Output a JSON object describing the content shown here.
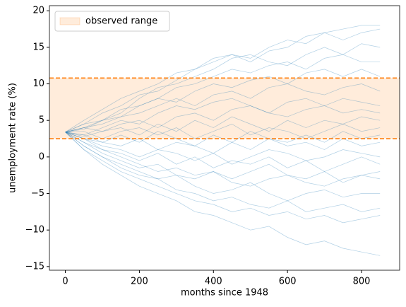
{
  "chart_data": {
    "type": "line",
    "xlabel": "months since 1948",
    "ylabel": "unemployment rate (%)",
    "x": [
      0,
      50,
      100,
      150,
      200,
      250,
      300,
      350,
      400,
      450,
      500,
      550,
      600,
      650,
      700,
      750,
      800,
      850
    ],
    "color": "#1f77b4",
    "series": [
      {
        "values": [
          3.4,
          5,
          6.5,
          8,
          9,
          10,
          11.5,
          12,
          13,
          14,
          13.5,
          15,
          16,
          15.5,
          17,
          17.5,
          18,
          18
        ]
      },
      {
        "values": [
          3.4,
          4.5,
          6,
          7,
          8.5,
          9,
          10.5,
          12,
          13.5,
          14,
          13,
          14.5,
          15,
          16.5,
          17,
          16,
          17,
          17.5
        ]
      },
      {
        "values": [
          3.4,
          4,
          5,
          6,
          8,
          9.5,
          10,
          11,
          12,
          13.5,
          14,
          13,
          12.5,
          14,
          15,
          14,
          15.5,
          15
        ]
      },
      {
        "values": [
          3.4,
          4.5,
          5,
          6.5,
          7,
          8,
          9.5,
          10,
          11,
          12,
          11.5,
          12.5,
          13,
          12,
          13.5,
          14,
          13,
          13
        ]
      },
      {
        "values": [
          3.4,
          3.8,
          5,
          5.5,
          7,
          8,
          7.5,
          9,
          10,
          9.5,
          10.5,
          11,
          10,
          11.5,
          12,
          11,
          12,
          11
        ]
      },
      {
        "values": [
          3.4,
          4,
          4.5,
          5.5,
          6,
          7,
          8,
          7,
          8.5,
          9,
          8,
          9.5,
          10,
          9,
          8.5,
          9.5,
          10,
          9
        ]
      },
      {
        "values": [
          3.4,
          3,
          4,
          5,
          4.5,
          6,
          7,
          6.5,
          7.5,
          8,
          7,
          6,
          7.5,
          8,
          7,
          8,
          7.5,
          7
        ]
      },
      {
        "values": [
          3.4,
          4,
          3.5,
          4.5,
          5,
          4,
          5.5,
          6,
          5,
          6.5,
          7,
          6,
          5.5,
          6.5,
          7,
          6,
          6.5,
          6
        ]
      },
      {
        "values": [
          3.4,
          2.8,
          3.5,
          4,
          3,
          4.5,
          3.5,
          5,
          4,
          5.5,
          4.5,
          3.5,
          5,
          4,
          5,
          4.5,
          5.5,
          5
        ]
      },
      {
        "values": [
          3.4,
          3.5,
          2.5,
          3.5,
          4,
          3,
          4,
          2.5,
          3.5,
          4.5,
          3,
          4,
          3.5,
          2.5,
          3.5,
          4.5,
          3.5,
          4
        ]
      },
      {
        "values": [
          3.4,
          3,
          2,
          3,
          2,
          3.5,
          2.5,
          1.5,
          3,
          2,
          3.5,
          2.5,
          2,
          3,
          2,
          3.5,
          2.5,
          3
        ]
      },
      {
        "values": [
          3.4,
          2.5,
          2,
          1.5,
          2.5,
          1,
          2,
          1.5,
          0.5,
          2,
          1,
          2.5,
          1.5,
          2,
          1,
          2.5,
          1.5,
          2
        ]
      },
      {
        "values": [
          3.4,
          2.5,
          1.5,
          1,
          0,
          1,
          0.5,
          -0.5,
          0.5,
          -1,
          0,
          1,
          0.5,
          -0.5,
          0,
          1,
          0.5,
          0
        ]
      },
      {
        "values": [
          3.4,
          2,
          1,
          0.5,
          -0.5,
          0.5,
          -1,
          0,
          -1.5,
          -0.5,
          -1,
          0,
          -1.5,
          -0.5,
          -2,
          -1,
          0,
          -1
        ]
      },
      {
        "values": [
          3.4,
          2.5,
          1,
          0,
          -1,
          -2,
          -1.5,
          -2.5,
          -2,
          -3,
          -2,
          -1,
          -2.5,
          -3,
          -2,
          -3.5,
          -2.5,
          -2
        ]
      },
      {
        "values": [
          3.4,
          2,
          0.5,
          -0.5,
          -1.5,
          -1,
          -2.5,
          -3,
          -2,
          -3.5,
          -4,
          -3,
          -2.5,
          -3.5,
          -4,
          -3,
          -2.5,
          -3
        ]
      },
      {
        "values": [
          3.4,
          1.5,
          0,
          -1,
          -2,
          -3,
          -2.5,
          -4,
          -5,
          -4.5,
          -3.5,
          -5,
          -6,
          -5,
          -4.5,
          -5.5,
          -5,
          -5
        ]
      },
      {
        "values": [
          3.4,
          1.5,
          0,
          -1.5,
          -2.5,
          -3,
          -4.5,
          -5,
          -6,
          -5.5,
          -6.5,
          -7,
          -6,
          -7.5,
          -7,
          -6.5,
          -7.5,
          -7
        ]
      },
      {
        "values": [
          3.4,
          1,
          -0.5,
          -2,
          -3,
          -4,
          -5,
          -6,
          -6.5,
          -7.5,
          -7,
          -8,
          -7.5,
          -8.5,
          -8,
          -9,
          -8.5,
          -8
        ]
      },
      {
        "values": [
          3.4,
          1,
          -1,
          -2.5,
          -4,
          -5,
          -6,
          -7.5,
          -8,
          -9,
          -10,
          -9.5,
          -11,
          -12,
          -11.5,
          -12.5,
          -13,
          -13.5
        ]
      }
    ],
    "span": {
      "label": "observed range",
      "ymin": 2.5,
      "ymax": 10.8,
      "color": "#ff7f0e"
    },
    "legend": "upper left",
    "xlim": [
      -43,
      903
    ],
    "ylim": [
      -15.5,
      20.7
    ],
    "xticks": [
      0,
      200,
      400,
      600,
      800
    ],
    "yticks": [
      {
        "value": -15,
        "label": "−15"
      },
      {
        "value": -10,
        "label": "−10"
      },
      {
        "value": -5,
        "label": "−5"
      },
      0,
      5,
      10,
      15,
      20
    ]
  }
}
